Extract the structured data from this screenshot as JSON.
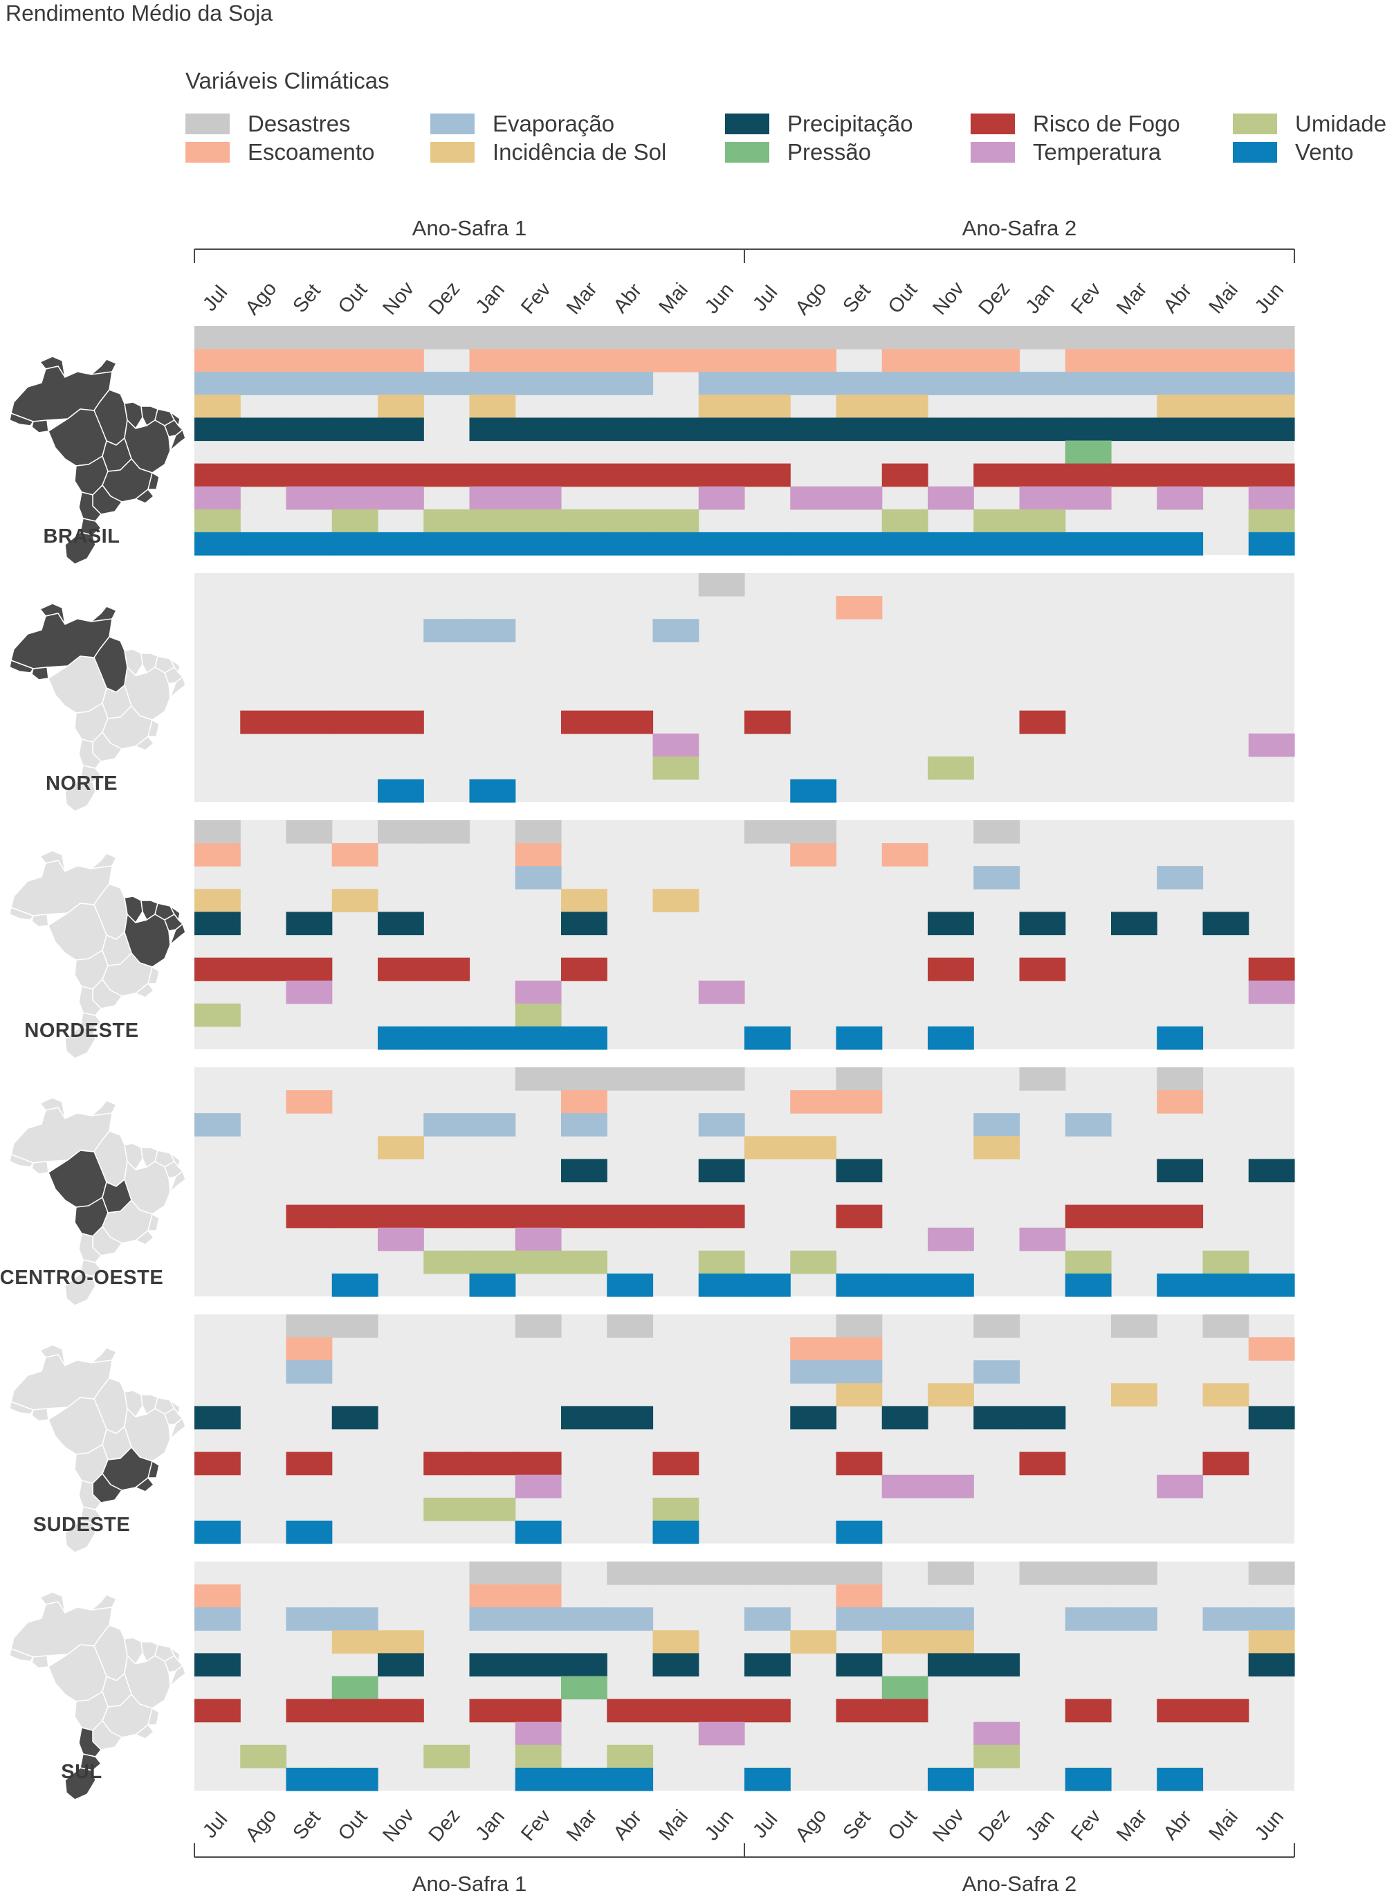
{
  "title": "Rendimento Médio da Soja",
  "legend": {
    "title": "Variáveis Climáticas",
    "items": [
      {
        "label": "Desastres",
        "color": "#c9c9c9"
      },
      {
        "label": "Escoamento",
        "color": "#f8b195"
      },
      {
        "label": "Evaporação",
        "color": "#a2bfd6"
      },
      {
        "label": "Incidência de Sol",
        "color": "#e7c787"
      },
      {
        "label": "Precipitação",
        "color": "#0f4b5e"
      },
      {
        "label": "Pressão",
        "color": "#7dbd83"
      },
      {
        "label": "Risco de Fogo",
        "color": "#b83b38"
      },
      {
        "label": "Temperatura",
        "color": "#cc9ac8"
      },
      {
        "label": "Umidade",
        "color": "#bcc98b"
      },
      {
        "label": "Vento",
        "color": "#0a7fb9"
      }
    ]
  },
  "colors": {
    "panel_background": "#ebebeb",
    "map_highlight": "#4a4a4a",
    "map_base": "#e0e0e0"
  },
  "chart_data": {
    "type": "heatmap",
    "title": "Rendimento Médio da Soja",
    "seasons": [
      "Ano-Safra 1",
      "Ano-Safra 2"
    ],
    "months": [
      "Jul",
      "Ago",
      "Set",
      "Out",
      "Nov",
      "Dez",
      "Jan",
      "Fev",
      "Mar",
      "Abr",
      "Mai",
      "Jun",
      "Jul",
      "Ago",
      "Set",
      "Out",
      "Nov",
      "Dez",
      "Jan",
      "Fev",
      "Mar",
      "Abr",
      "Mai",
      "Jun"
    ],
    "variables": [
      "Desastres",
      "Escoamento",
      "Evaporação",
      "Incidência de Sol",
      "Precipitação",
      "Pressão",
      "Risco de Fogo",
      "Temperatura",
      "Umidade",
      "Vento"
    ],
    "regions": [
      {
        "name": "BRASIL",
        "highlight": "all",
        "cells": {
          "Desastres": [
            0,
            1,
            2,
            3,
            4,
            5,
            6,
            7,
            8,
            9,
            10,
            11,
            12,
            13,
            14,
            15,
            16,
            17,
            18,
            19,
            20,
            21,
            22,
            23
          ],
          "Escoamento": [
            0,
            1,
            2,
            3,
            4,
            6,
            7,
            8,
            9,
            10,
            11,
            12,
            13,
            15,
            16,
            17,
            19,
            20,
            21,
            22,
            23
          ],
          "Evaporação": [
            0,
            1,
            2,
            3,
            4,
            5,
            6,
            7,
            8,
            9,
            11,
            12,
            13,
            14,
            15,
            16,
            17,
            18,
            19,
            20,
            21,
            22,
            23
          ],
          "Incidência de Sol": [
            0,
            4,
            6,
            11,
            12,
            14,
            15,
            21,
            22,
            23
          ],
          "Precipitação": [
            0,
            1,
            2,
            3,
            4,
            6,
            7,
            8,
            9,
            10,
            11,
            12,
            13,
            14,
            15,
            16,
            17,
            18,
            19,
            20,
            21,
            22,
            23
          ],
          "Pressão": [
            19
          ],
          "Risco de Fogo": [
            0,
            1,
            2,
            3,
            4,
            5,
            6,
            7,
            8,
            9,
            10,
            11,
            12,
            15,
            17,
            18,
            19,
            20,
            21,
            22,
            23
          ],
          "Temperatura": [
            0,
            2,
            3,
            4,
            6,
            7,
            11,
            13,
            14,
            16,
            18,
            19,
            21,
            23
          ],
          "Umidade": [
            0,
            3,
            5,
            6,
            7,
            8,
            9,
            10,
            15,
            17,
            18,
            23
          ],
          "Vento": [
            0,
            1,
            2,
            3,
            4,
            5,
            6,
            7,
            8,
            9,
            10,
            11,
            12,
            13,
            14,
            15,
            16,
            17,
            18,
            19,
            20,
            21,
            23
          ]
        }
      },
      {
        "name": "NORTE",
        "highlight": "norte",
        "cells": {
          "Desastres": [
            11
          ],
          "Escoamento": [
            14
          ],
          "Evaporação": [
            5,
            6,
            10
          ],
          "Incidência de Sol": [],
          "Precipitação": [],
          "Pressão": [],
          "Risco de Fogo": [
            1,
            2,
            3,
            4,
            8,
            9,
            12,
            18
          ],
          "Temperatura": [
            10,
            23
          ],
          "Umidade": [
            10,
            16
          ],
          "Vento": [
            4,
            6,
            13
          ]
        }
      },
      {
        "name": "NORDESTE",
        "highlight": "nordeste",
        "cells": {
          "Desastres": [
            0,
            2,
            4,
            5,
            7,
            12,
            13,
            17
          ],
          "Escoamento": [
            0,
            3,
            7,
            13,
            15
          ],
          "Evaporação": [
            7,
            17,
            21
          ],
          "Incidência de Sol": [
            0,
            3,
            8,
            10
          ],
          "Precipitação": [
            0,
            2,
            4,
            8,
            16,
            18,
            20,
            22
          ],
          "Pressão": [],
          "Risco de Fogo": [
            0,
            1,
            2,
            4,
            5,
            8,
            16,
            18,
            23
          ],
          "Temperatura": [
            2,
            7,
            11,
            23
          ],
          "Umidade": [
            0,
            7
          ],
          "Vento": [
            4,
            5,
            6,
            7,
            8,
            12,
            14,
            16,
            21
          ]
        }
      },
      {
        "name": "CENTRO-OESTE",
        "highlight": "centro",
        "cells": {
          "Desastres": [
            7,
            8,
            9,
            10,
            11,
            14,
            18,
            21
          ],
          "Escoamento": [
            2,
            8,
            13,
            14,
            21
          ],
          "Evaporação": [
            0,
            5,
            6,
            8,
            11,
            17,
            19
          ],
          "Incidência de Sol": [
            4,
            12,
            13,
            17
          ],
          "Precipitação": [
            8,
            11,
            14,
            21,
            23
          ],
          "Pressão": [],
          "Risco de Fogo": [
            2,
            3,
            4,
            5,
            6,
            7,
            8,
            9,
            10,
            11,
            14,
            19,
            20,
            21
          ],
          "Temperatura": [
            4,
            7,
            16,
            18
          ],
          "Umidade": [
            5,
            6,
            7,
            8,
            11,
            13,
            19,
            22
          ],
          "Vento": [
            3,
            6,
            9,
            11,
            12,
            14,
            15,
            16,
            19,
            21,
            22,
            23
          ]
        }
      },
      {
        "name": "SUDESTE",
        "highlight": "sudeste",
        "cells": {
          "Desastres": [
            2,
            3,
            7,
            9,
            14,
            17,
            20,
            22
          ],
          "Escoamento": [
            2,
            13,
            14,
            23
          ],
          "Evaporação": [
            2,
            13,
            14,
            17
          ],
          "Incidência de Sol": [
            14,
            16,
            20,
            22
          ],
          "Precipitação": [
            0,
            3,
            8,
            9,
            13,
            15,
            17,
            18,
            23
          ],
          "Pressão": [],
          "Risco de Fogo": [
            0,
            2,
            5,
            6,
            7,
            10,
            14,
            18,
            22
          ],
          "Temperatura": [
            7,
            15,
            16,
            21
          ],
          "Umidade": [
            5,
            6,
            10
          ],
          "Vento": [
            0,
            2,
            7,
            10,
            14
          ]
        }
      },
      {
        "name": "SUL",
        "highlight": "sul",
        "cells": {
          "Desastres": [
            6,
            7,
            9,
            10,
            11,
            12,
            13,
            14,
            16,
            18,
            19,
            20,
            23
          ],
          "Escoamento": [
            0,
            6,
            7,
            14
          ],
          "Evaporação": [
            0,
            2,
            3,
            6,
            7,
            8,
            9,
            12,
            14,
            15,
            16,
            19,
            20,
            22,
            23
          ],
          "Incidência de Sol": [
            3,
            4,
            10,
            13,
            15,
            16,
            23
          ],
          "Precipitação": [
            0,
            4,
            6,
            7,
            8,
            10,
            12,
            14,
            16,
            17,
            23
          ],
          "Pressão": [
            3,
            8,
            15
          ],
          "Risco de Fogo": [
            0,
            2,
            3,
            4,
            6,
            7,
            9,
            10,
            11,
            12,
            14,
            15,
            19,
            21,
            22
          ],
          "Temperatura": [
            7,
            11,
            17
          ],
          "Umidade": [
            1,
            5,
            7,
            9,
            17
          ],
          "Vento": [
            2,
            3,
            7,
            8,
            9,
            12,
            16,
            19,
            21
          ]
        }
      }
    ]
  }
}
